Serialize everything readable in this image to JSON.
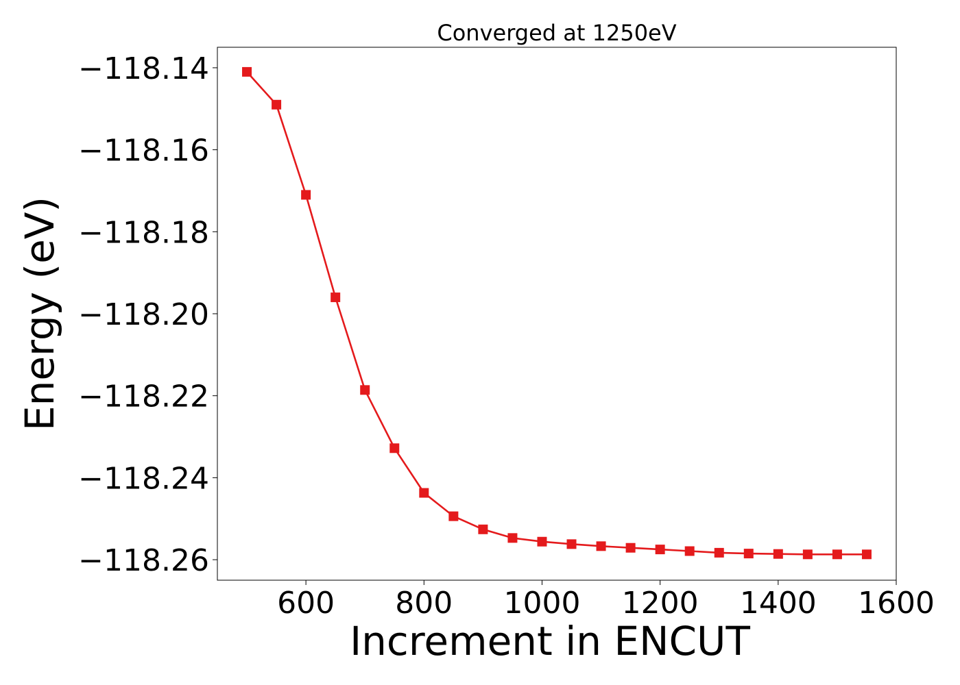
{
  "chart_data": {
    "type": "line",
    "title": "Converged at 1250eV",
    "xlabel": "Increment in ENCUT",
    "ylabel": "Energy (eV)",
    "xlim": [
      450,
      1600
    ],
    "ylim": [
      -118.265,
      -118.135
    ],
    "xticks": [
      600,
      800,
      1000,
      1200,
      1400,
      1600
    ],
    "xtick_labels": [
      "600",
      "800",
      "1000",
      "1200",
      "1400",
      "1600"
    ],
    "yticks": [
      -118.14,
      -118.16,
      -118.18,
      -118.2,
      -118.22,
      -118.24,
      -118.26
    ],
    "ytick_labels": [
      "−118.14",
      "−118.16",
      "−118.18",
      "−118.20",
      "−118.22",
      "−118.24",
      "−118.26"
    ],
    "grid": false,
    "series": [
      {
        "color": "#e41a1c",
        "marker": "square",
        "x": [
          500,
          550,
          600,
          650,
          700,
          750,
          800,
          850,
          900,
          950,
          1000,
          1050,
          1100,
          1150,
          1200,
          1250,
          1300,
          1350,
          1400,
          1450,
          1500,
          1550
        ],
        "y": [
          -118.141,
          -118.149,
          -118.171,
          -118.196,
          -118.2186,
          -118.2328,
          -118.2437,
          -118.2494,
          -118.2526,
          -118.2547,
          -118.2556,
          -118.2562,
          -118.2567,
          -118.2571,
          -118.2575,
          -118.2579,
          -118.2583,
          -118.2585,
          -118.2586,
          -118.2587,
          -118.2587,
          -118.2587
        ]
      }
    ]
  }
}
